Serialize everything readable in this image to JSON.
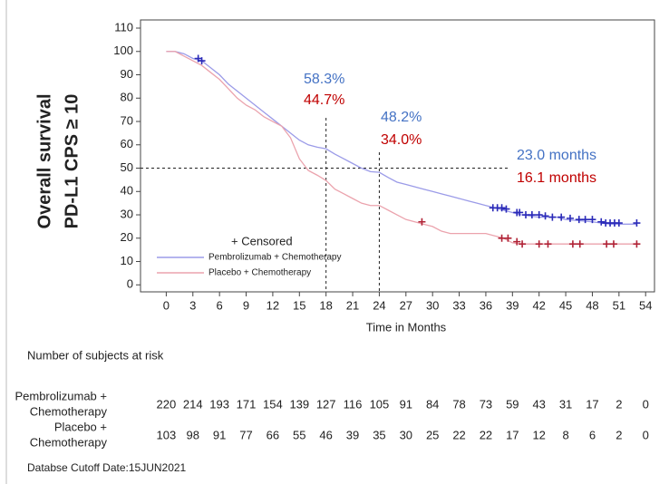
{
  "chart_data": {
    "type": "km",
    "ylabel": [
      "Overall survival",
      "PD-L1 CPS ≥ 10"
    ],
    "xlabel": "Time in Months",
    "xlim": [
      -2.9,
      55
    ],
    "ylim": [
      -3,
      113.5
    ],
    "xticks": [
      0,
      3,
      6,
      9,
      12,
      15,
      18,
      21,
      24,
      27,
      30,
      33,
      36,
      39,
      42,
      45,
      48,
      51,
      54
    ],
    "yticks": [
      0,
      10,
      20,
      30,
      40,
      50,
      60,
      70,
      80,
      90,
      100,
      110
    ],
    "censored_label": "+ Censored",
    "ref_lines": {
      "x": [
        18,
        24
      ],
      "y": 50
    },
    "series": [
      {
        "name": "Pembrolizumab + Chemotherapy",
        "color": "#9b9be8",
        "marker_color": "#2a2ab8",
        "x": [
          0,
          1,
          2,
          3,
          4,
          5,
          6,
          7,
          8,
          9,
          10,
          11,
          12,
          13,
          14,
          15,
          16,
          17,
          18,
          19,
          20,
          21,
          22,
          23,
          24,
          25,
          26,
          27,
          28,
          29,
          30,
          31,
          32,
          33,
          34,
          35,
          36,
          37,
          38,
          39,
          40,
          42,
          44,
          45,
          48,
          50,
          53
        ],
        "values": [
          100,
          100,
          99,
          97,
          96,
          93,
          90,
          86,
          83,
          80,
          77,
          74,
          71,
          68,
          65,
          62,
          60,
          59,
          58.3,
          56,
          54,
          52,
          50,
          48.5,
          48.2,
          46,
          44,
          43,
          42,
          41,
          40,
          39,
          38,
          37,
          36,
          35,
          34,
          33,
          32,
          31,
          30,
          29,
          29,
          28,
          27,
          26,
          26
        ],
        "censored_x": [
          3.6,
          4,
          36.8,
          37.3,
          37.8,
          38.3,
          39.5,
          39.8,
          40.5,
          41.2,
          42,
          42.7,
          43.5,
          44.5,
          45.5,
          46.5,
          47.2,
          48,
          49,
          49.5,
          50,
          50.5,
          51,
          53
        ],
        "censored_y": [
          97,
          96,
          33,
          33,
          33,
          32.5,
          31,
          31,
          30,
          30,
          30,
          29.5,
          29,
          29,
          28.5,
          28,
          28,
          28,
          27,
          26.5,
          26.5,
          26.5,
          26.5,
          26.5
        ]
      },
      {
        "name": "Placebo + Chemotherapy",
        "color": "#eba3ad",
        "marker_color": "#b02235",
        "x": [
          0,
          1,
          2,
          3,
          4,
          5,
          6,
          7,
          8,
          9,
          10,
          11,
          12,
          13,
          14,
          15,
          16,
          17,
          18,
          19,
          20,
          21,
          22,
          23,
          24,
          25,
          26,
          27,
          28,
          29,
          30,
          31,
          32,
          34,
          36,
          37,
          38,
          39,
          40,
          53
        ],
        "values": [
          100,
          100,
          98,
          96,
          94,
          91,
          88,
          84,
          80,
          77,
          75,
          72,
          70,
          68,
          63,
          54,
          49,
          47,
          44.7,
          41,
          39,
          37,
          35,
          34,
          34,
          32,
          30,
          28,
          27,
          26,
          25,
          23,
          22,
          22,
          22,
          21,
          20,
          18,
          17.5,
          17.5
        ],
        "censored_x": [
          28.8,
          37.8,
          38.5,
          39.5,
          40.1,
          42,
          43,
          45.8,
          46.6,
          49.6,
          50.4,
          53
        ],
        "censored_y": [
          27,
          20,
          20,
          18.5,
          17.5,
          17.5,
          17.5,
          17.5,
          17.5,
          17.5,
          17.5,
          17.5
        ]
      }
    ],
    "annotations": [
      {
        "text": "58.3%",
        "color": "#4472c4"
      },
      {
        "text": "44.7%",
        "color": "#c00000"
      },
      {
        "text": "48.2%",
        "color": "#4472c4"
      },
      {
        "text": "34.0%",
        "color": "#c00000"
      },
      {
        "text": "23.0 months",
        "color": "#4472c4"
      },
      {
        "text": "16.1 months",
        "color": "#c00000"
      }
    ],
    "risk_table": {
      "title": "Number of subjects at risk",
      "rows": [
        {
          "label": [
            "Pembrolizumab +",
            "Chemotherapy"
          ],
          "values": [
            "220",
            "214",
            "193",
            "171",
            "154",
            "139",
            "127",
            "116",
            "105",
            "91",
            "84",
            "78",
            "73",
            "59",
            "43",
            "31",
            "17",
            "2",
            "0"
          ]
        },
        {
          "label": [
            "Placebo +",
            "Chemotherapy"
          ],
          "values": [
            "103",
            "98",
            "91",
            "77",
            "66",
            "55",
            "46",
            "39",
            "35",
            "30",
            "25",
            "22",
            "22",
            "17",
            "12",
            "8",
            "6",
            "2",
            "0"
          ]
        }
      ]
    },
    "footnote": "Databse Cutoff Date:15JUN2021"
  }
}
